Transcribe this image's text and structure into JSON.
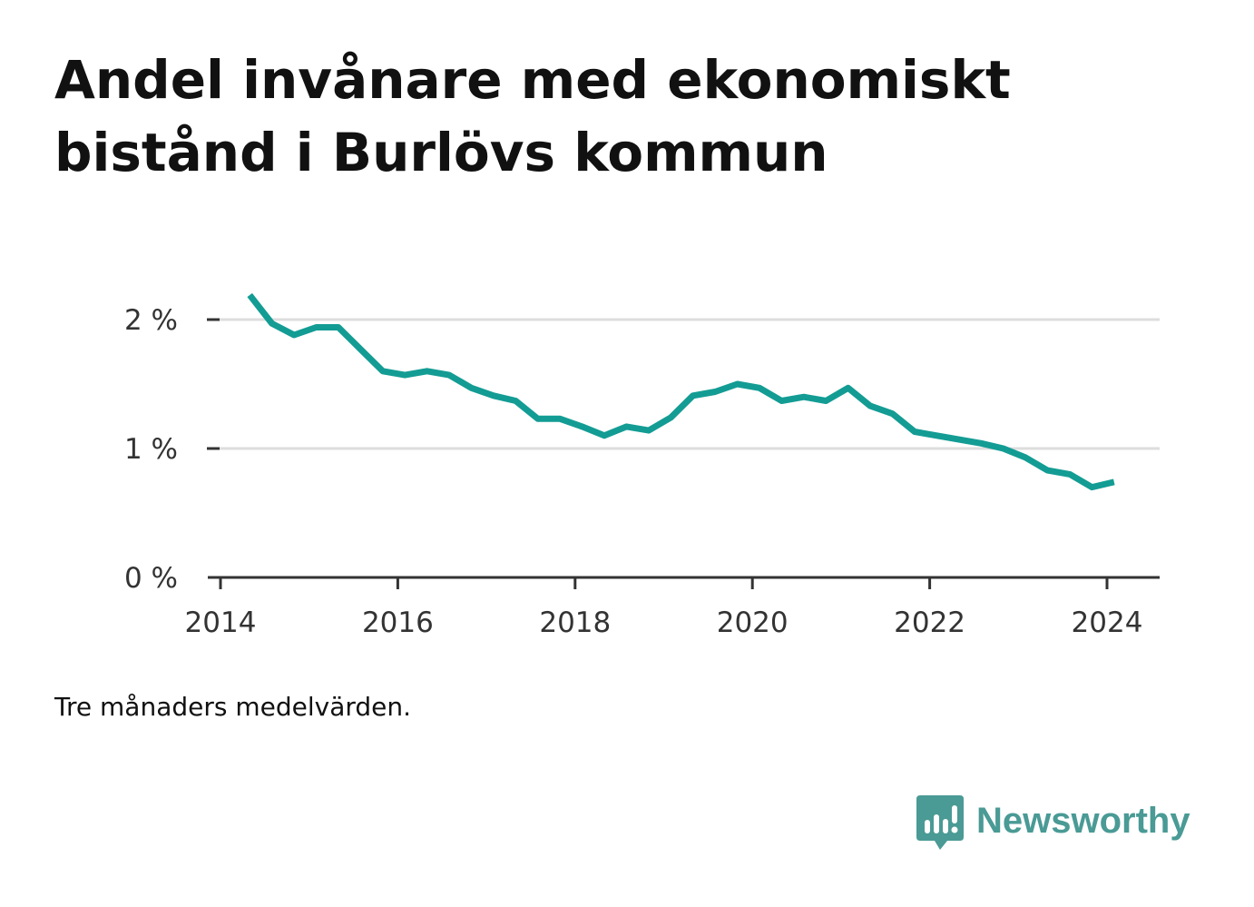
{
  "title": "Andel invånare med ekonomiskt bistånd i Burlövs kommun",
  "note": "Tre månaders medelvärden.",
  "brand": {
    "name": "Newsworthy",
    "icon": "newsworthy-logo-icon",
    "color": "#4a9a95"
  },
  "chart_data": {
    "type": "line",
    "title": "Andel invånare med ekonomiskt bistånd i Burlövs kommun",
    "xlabel": "",
    "ylabel": "",
    "ylim": [
      0,
      2
    ],
    "xlim": [
      2014.0,
      2024.6
    ],
    "grid": true,
    "legend": "none",
    "line_color": "#139c94",
    "y_ticks": [
      {
        "value": 0,
        "label": "0 %"
      },
      {
        "value": 1,
        "label": "1 %"
      },
      {
        "value": 2,
        "label": "2 %"
      }
    ],
    "x_ticks": [
      {
        "value": 2014,
        "label": "2014"
      },
      {
        "value": 2016,
        "label": "2016"
      },
      {
        "value": 2018,
        "label": "2018"
      },
      {
        "value": 2020,
        "label": "2020"
      },
      {
        "value": 2022,
        "label": "2022"
      },
      {
        "value": 2024,
        "label": "2024"
      }
    ],
    "series": [
      {
        "points": [
          [
            2014.33,
            2.19
          ],
          [
            2014.58,
            1.97
          ],
          [
            2014.83,
            1.88
          ],
          [
            2015.08,
            1.94
          ],
          [
            2015.33,
            1.94
          ],
          [
            2015.58,
            1.77
          ],
          [
            2015.83,
            1.6
          ],
          [
            2016.08,
            1.57
          ],
          [
            2016.33,
            1.6
          ],
          [
            2016.58,
            1.57
          ],
          [
            2016.83,
            1.47
          ],
          [
            2017.08,
            1.41
          ],
          [
            2017.33,
            1.37
          ],
          [
            2017.58,
            1.23
          ],
          [
            2017.83,
            1.23
          ],
          [
            2018.08,
            1.17
          ],
          [
            2018.33,
            1.1
          ],
          [
            2018.58,
            1.17
          ],
          [
            2018.83,
            1.14
          ],
          [
            2019.08,
            1.24
          ],
          [
            2019.33,
            1.41
          ],
          [
            2019.58,
            1.44
          ],
          [
            2019.83,
            1.5
          ],
          [
            2020.08,
            1.47
          ],
          [
            2020.33,
            1.37
          ],
          [
            2020.58,
            1.4
          ],
          [
            2020.83,
            1.37
          ],
          [
            2021.08,
            1.47
          ],
          [
            2021.33,
            1.33
          ],
          [
            2021.58,
            1.27
          ],
          [
            2021.83,
            1.13
          ],
          [
            2022.08,
            1.1
          ],
          [
            2022.33,
            1.07
          ],
          [
            2022.58,
            1.04
          ],
          [
            2022.83,
            1.0
          ],
          [
            2023.08,
            0.93
          ],
          [
            2023.33,
            0.83
          ],
          [
            2023.58,
            0.8
          ],
          [
            2023.83,
            0.7
          ],
          [
            2024.08,
            0.74
          ]
        ]
      }
    ]
  }
}
